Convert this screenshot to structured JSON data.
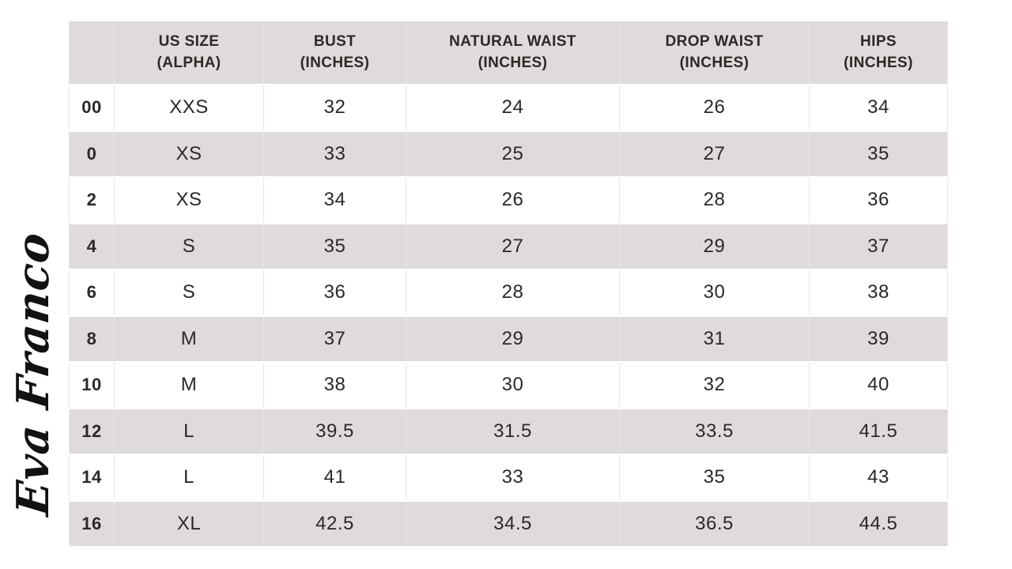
{
  "brand": {
    "logo_text": "Eva Franco"
  },
  "colors": {
    "row_shade": "#dfdbda",
    "grid_line": "#eae7e6",
    "text": "#2b2826",
    "background": "#ffffff",
    "logo": "#141210"
  },
  "chart_data": {
    "type": "table",
    "columns": [
      {
        "key": "size",
        "label": "",
        "label_lines": [
          ""
        ]
      },
      {
        "key": "us-size-alpha",
        "label": "US SIZE (ALPHA)",
        "label_lines": [
          "US SIZE",
          "(ALPHA)"
        ]
      },
      {
        "key": "bust",
        "label": "BUST (INCHES)",
        "label_lines": [
          "BUST",
          "(INCHES)"
        ]
      },
      {
        "key": "natural-waist",
        "label": "NATURAL WAIST (INCHES)",
        "label_lines": [
          "NATURAL WAIST",
          "(INCHES)"
        ]
      },
      {
        "key": "drop-waist",
        "label": "DROP WAIST (INCHES)",
        "label_lines": [
          "DROP WAIST",
          "(INCHES)"
        ]
      },
      {
        "key": "hips",
        "label": "HIPS (INCHES)",
        "label_lines": [
          "HIPS",
          "(INCHES)"
        ]
      }
    ],
    "rows": [
      [
        "00",
        "XXS",
        "32",
        "24",
        "26",
        "34"
      ],
      [
        "0",
        "XS",
        "33",
        "25",
        "27",
        "35"
      ],
      [
        "2",
        "XS",
        "34",
        "26",
        "28",
        "36"
      ],
      [
        "4",
        "S",
        "35",
        "27",
        "29",
        "37"
      ],
      [
        "6",
        "S",
        "36",
        "28",
        "30",
        "38"
      ],
      [
        "8",
        "M",
        "37",
        "29",
        "31",
        "39"
      ],
      [
        "10",
        "M",
        "38",
        "30",
        "32",
        "40"
      ],
      [
        "12",
        "L",
        "39.5",
        "31.5",
        "33.5",
        "41.5"
      ],
      [
        "14",
        "L",
        "41",
        "33",
        "35",
        "43"
      ],
      [
        "16",
        "XL",
        "42.5",
        "34.5",
        "36.5",
        "44.5"
      ]
    ]
  }
}
